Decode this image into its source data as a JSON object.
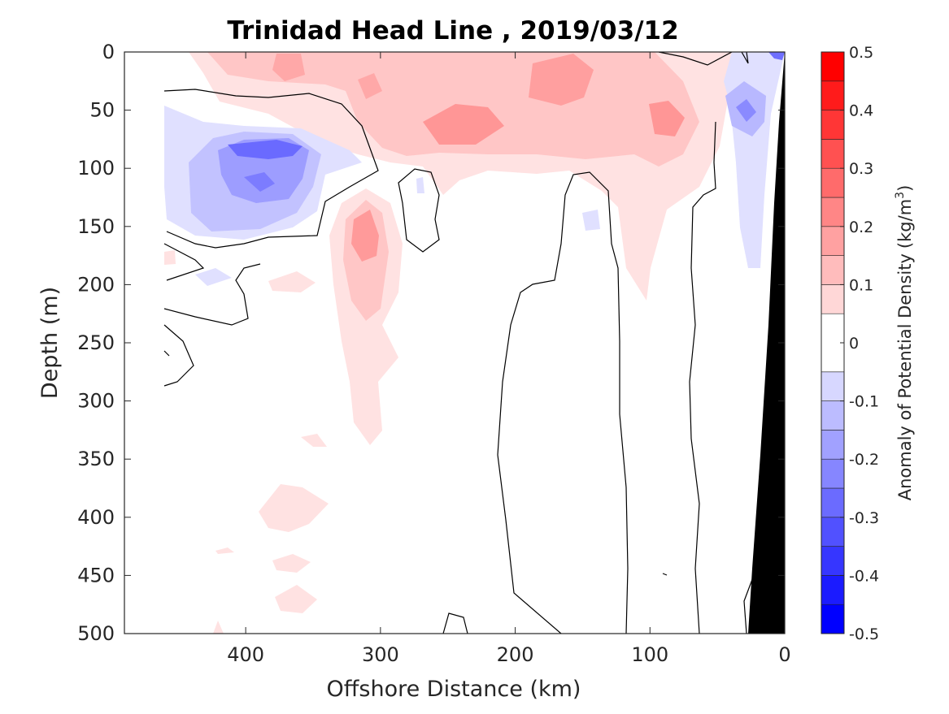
{
  "chart_data": {
    "type": "heatmap",
    "subtype": "filled-contour-section",
    "title": "Trinidad Head Line , 2019/03/12",
    "xlabel": "Offshore Distance (km)",
    "ylabel": "Depth (m)",
    "xlim": [
      490,
      0
    ],
    "x_reversed": true,
    "ylim": [
      0,
      500
    ],
    "y_reversed": true,
    "x_ticks": [
      "400",
      "300",
      "200",
      "100",
      "0"
    ],
    "y_ticks": [
      "0",
      "50",
      "100",
      "150",
      "200",
      "250",
      "300",
      "350",
      "400",
      "450",
      "500"
    ],
    "colorbar": {
      "label": "Anomaly of Potential Density",
      "unit_prefix": "(kg/m",
      "unit_exp": "3",
      "unit_suffix": ")",
      "range": [
        -0.5,
        0.5
      ],
      "ticks": [
        "0.5",
        "0.4",
        "0.3",
        "0.2",
        "0.1",
        "0",
        "-0.1",
        "-0.2",
        "-0.3",
        "-0.4",
        "-0.5"
      ],
      "levels": [
        -0.5,
        -0.45,
        -0.4,
        -0.35,
        -0.3,
        -0.25,
        -0.2,
        -0.15,
        -0.1,
        -0.05,
        0.05,
        0.1,
        0.15,
        0.2,
        0.25,
        0.3,
        0.35,
        0.4,
        0.45,
        0.5
      ],
      "colormap": "blue-white-red"
    },
    "anomaly_regions": [
      {
        "feature": "surface positive band",
        "x_range": [
          440,
          50
        ],
        "depth_range": [
          0,
          130
        ],
        "value": 0.1
      },
      {
        "feature": "positive core near 240 km",
        "x": 240,
        "depth": 60,
        "value": 0.25
      },
      {
        "feature": "positive core near 160 km",
        "x": 160,
        "depth": 30,
        "value": 0.2
      },
      {
        "feature": "positive core near 90 km",
        "x": 90,
        "depth": 55,
        "value": 0.2
      },
      {
        "feature": "subsurface positive plume",
        "x": 310,
        "depth_range": [
          120,
          350
        ],
        "value": 0.2
      },
      {
        "feature": "negative core",
        "x": 380,
        "depth": 85,
        "value": -0.3
      },
      {
        "feature": "nearshore negative",
        "x": 30,
        "depth_range": [
          20,
          200
        ],
        "value": -0.2
      },
      {
        "feature": "deep weak positives",
        "x_range": [
          420,
          320
        ],
        "depth_range": [
          370,
          500
        ],
        "value": 0.05
      }
    ],
    "bathymetry": {
      "color": "#000000",
      "shelf_edge_x": [
        0,
        25
      ],
      "depth_range": [
        0,
        500
      ]
    }
  }
}
